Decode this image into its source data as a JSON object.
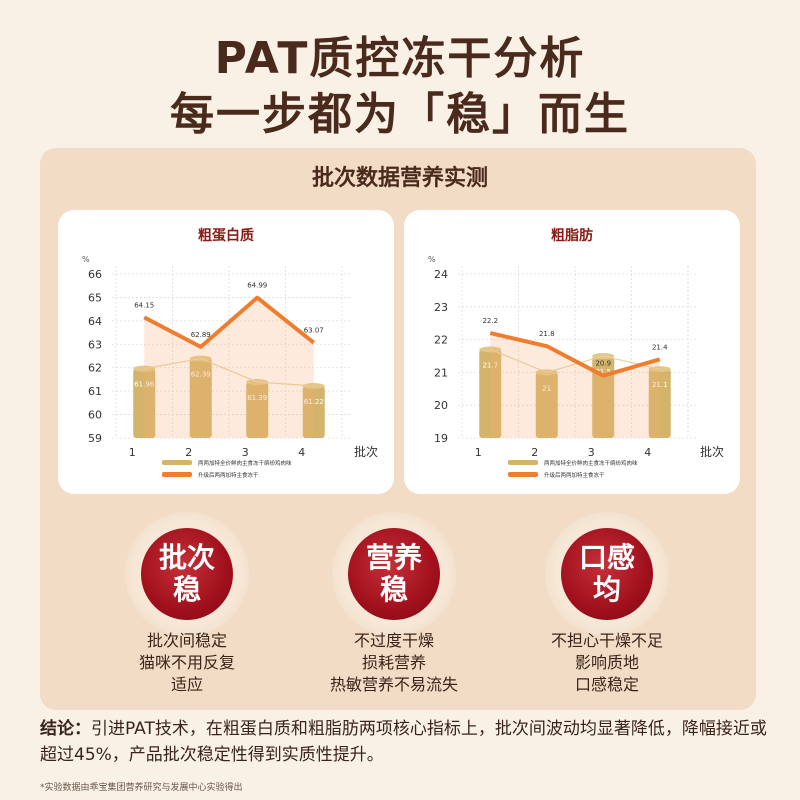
{
  "header": {
    "title_line1": "PAT质控冻干分析",
    "title_line2": "每一步都为「稳」而生"
  },
  "section": {
    "title": "批次数据营养实测"
  },
  "chart_data": [
    {
      "type": "bar+line",
      "title": "粗蛋白质",
      "unit": "%",
      "xlabel": "批次",
      "categories": [
        "1",
        "2",
        "3",
        "4"
      ],
      "ylim": [
        59,
        66
      ],
      "yticks": [
        59,
        60,
        61,
        62,
        63,
        64,
        65,
        66
      ],
      "series": [
        {
          "name": "两两加特全价鲜肉主食冻干缤纷鸡肉味",
          "type": "bar",
          "color": "#d4b46a",
          "values": [
            61.96,
            62.39,
            61.39,
            61.22
          ],
          "labels": [
            "61.96",
            "62.39",
            "61.39",
            "61.22"
          ]
        },
        {
          "name": "升级后两两加特主食冻干",
          "type": "line",
          "color": "#ee7d2e",
          "values": [
            64.15,
            62.89,
            64.99,
            63.07
          ],
          "labels": [
            "64.15",
            "62.89",
            "64.99",
            "63.07"
          ]
        }
      ]
    },
    {
      "type": "bar+line",
      "title": "粗脂肪",
      "unit": "%",
      "xlabel": "批次",
      "categories": [
        "1",
        "2",
        "3",
        "4"
      ],
      "ylim": [
        19,
        24
      ],
      "yticks": [
        19,
        20,
        21,
        22,
        23,
        24
      ],
      "series": [
        {
          "name": "两两加特全价鲜肉主食冻干缤纷鸡肉味",
          "type": "bar",
          "color": "#d4b46a",
          "values": [
            21.7,
            21,
            21.5,
            21.1
          ],
          "labels": [
            "21.7",
            "21",
            "21.5",
            "21.1"
          ]
        },
        {
          "name": "升级后两两加特主食冻干",
          "type": "line",
          "color": "#ee7d2e",
          "values": [
            22.2,
            21.8,
            20.9,
            21.4
          ],
          "labels": [
            "22.2",
            "21.8",
            "20.9",
            "21.4"
          ]
        }
      ]
    }
  ],
  "badges": [
    {
      "line1": "批次",
      "line2": "稳",
      "desc": [
        "批次间稳定",
        "猫咪不用反复",
        "适应"
      ]
    },
    {
      "line1": "营养",
      "line2": "稳",
      "desc": [
        "不过度干燥",
        "损耗营养",
        "热敏营养不易流失"
      ]
    },
    {
      "line1": "口感",
      "line2": "均",
      "desc": [
        "不担心干燥不足",
        "影响质地",
        "口感稳定"
      ]
    }
  ],
  "conclusion": {
    "label": "结论：",
    "text": "引进PAT技术，在粗蛋白质和粗脂肪两项核心指标上，批次间波动均显著降低，降幅接近或超过45%，产品批次稳定性得到实质性提升。"
  },
  "footnote": "*实验数据由乖宝集团营养研究与发展中心实验得出"
}
